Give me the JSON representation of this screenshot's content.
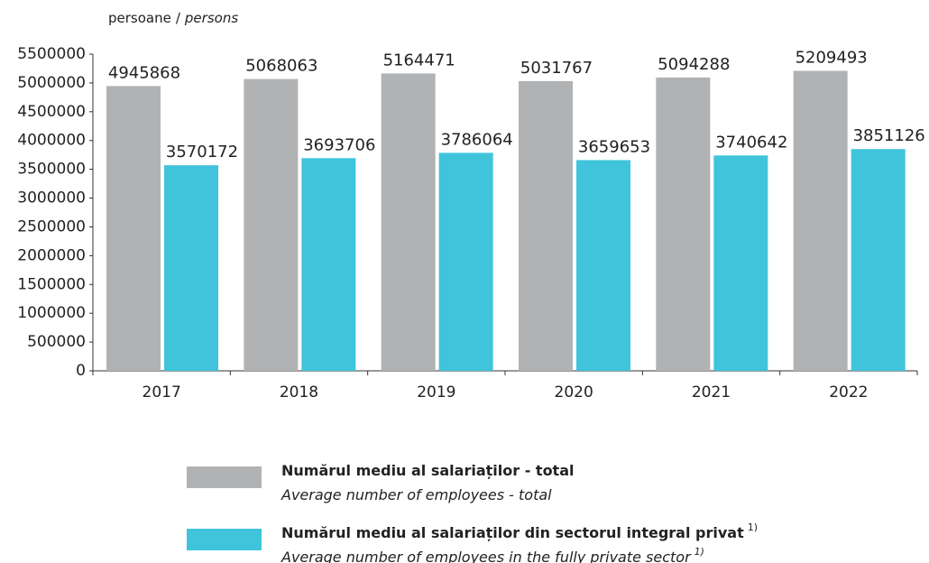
{
  "chart_data": {
    "type": "bar",
    "ylabel": [
      "persoane",
      "/",
      "persons"
    ],
    "categories": [
      "2017",
      "2018",
      "2019",
      "2020",
      "2021",
      "2022"
    ],
    "series": [
      {
        "name": "Numărul mediu al salariaților - total",
        "name_en": "Average number of employees - total",
        "color": "#b1b2b4",
        "values": [
          4945868,
          5068063,
          5164471,
          5031767,
          5094288,
          5209493
        ]
      },
      {
        "name": "Numărul mediu al salariaților din sectorul integral privat",
        "name_en": "Average number of employees in the fully private sector",
        "footnote": "1)",
        "color": "#40c4dc",
        "values": [
          3570172,
          3693706,
          3786064,
          3659653,
          3740642,
          3851126
        ]
      }
    ],
    "ylim": [
      0,
      5500000
    ],
    "yticks": [
      0,
      500000,
      1000000,
      1500000,
      2000000,
      2500000,
      3000000,
      3500000,
      4000000,
      4500000,
      5000000,
      5500000
    ]
  }
}
